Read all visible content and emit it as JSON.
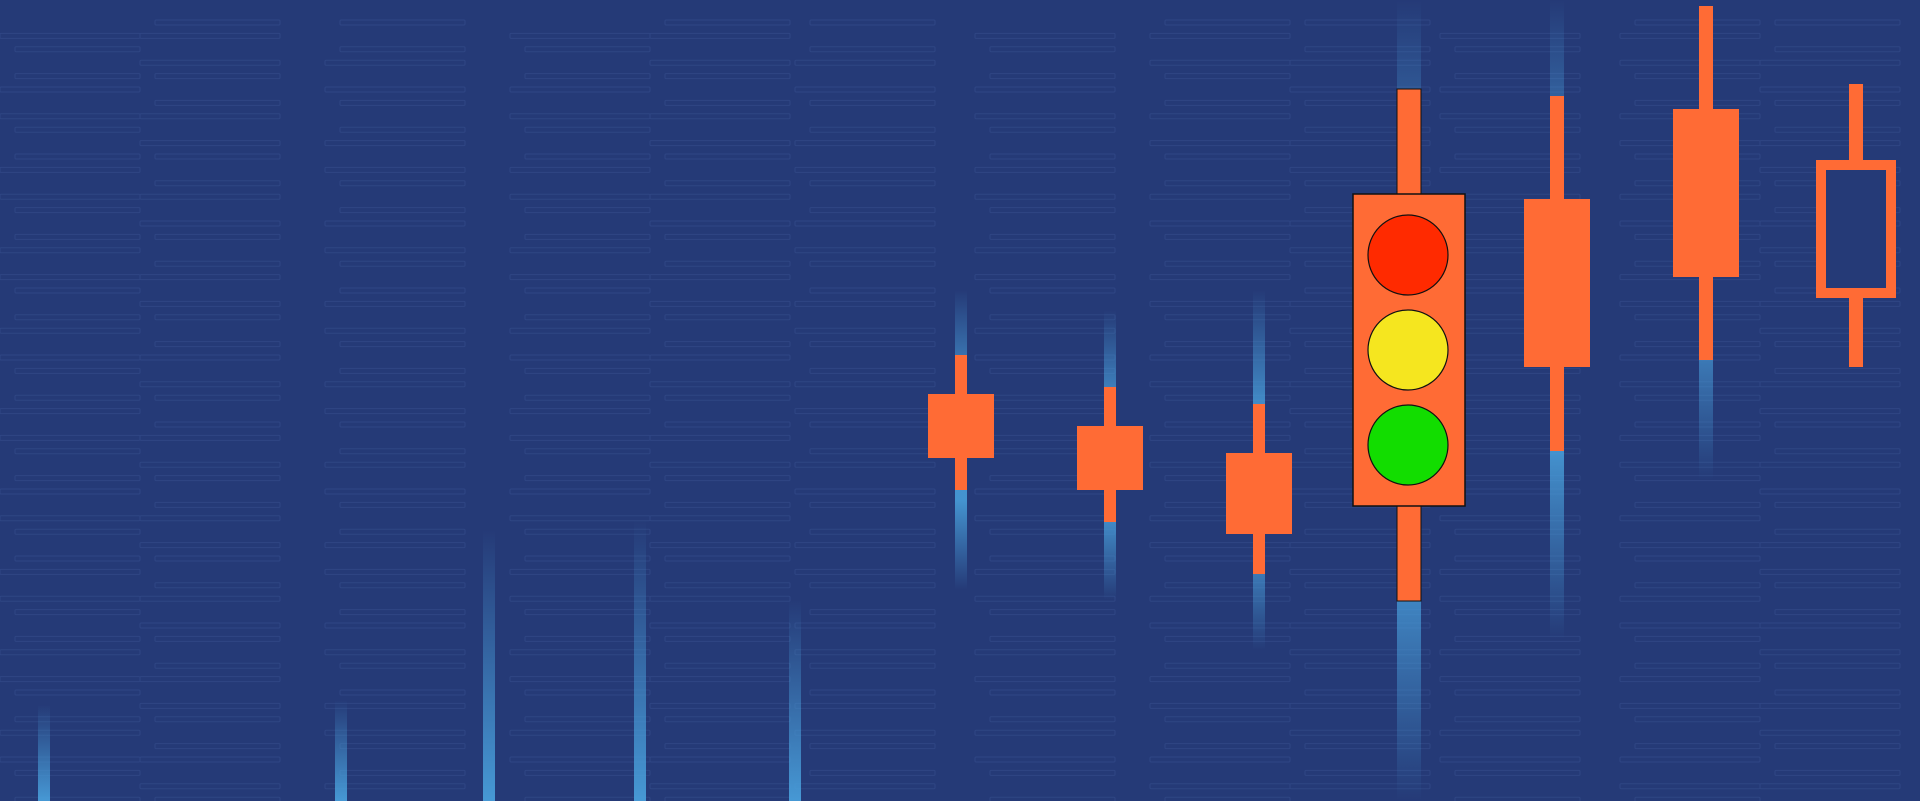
{
  "colors": {
    "background": "#253a77",
    "pattern_line": "#2f4684",
    "candle": "#ff6b35",
    "glow": "#4aa3df",
    "light_red": "#ff2a00",
    "light_yellow": "#f5e61f",
    "light_green": "#12dd00",
    "outline": "#111111"
  },
  "icons": {
    "traffic_light": "traffic-light-icon",
    "candles": "candlestick-icon",
    "glow_lines": "light-streak-icon"
  }
}
